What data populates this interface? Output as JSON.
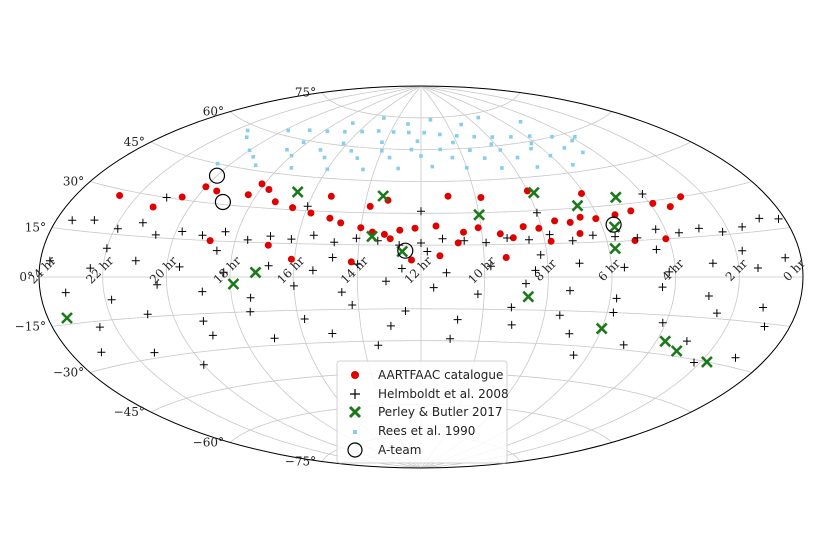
{
  "chart_data": {
    "type": "scatter",
    "projection": "aitoff",
    "grid": true,
    "legend_position": "bottom-center",
    "x_tick_labels": [
      "24 hr",
      "22 hr",
      "20 hr",
      "18 hr",
      "16 hr",
      "14 hr",
      "12 hr",
      "10 hr",
      "8 hr",
      "6 hr",
      "4 hr",
      "2 hr",
      "0 hr"
    ],
    "x_tick_values_hr": [
      24,
      22,
      20,
      18,
      16,
      14,
      12,
      10,
      8,
      6,
      4,
      2,
      0
    ],
    "y_tick_labels": [
      "75°",
      "60°",
      "45°",
      "30°",
      "15°",
      "0°",
      "−15°",
      "−30°",
      "−45°",
      "−60°",
      "−75°"
    ],
    "y_tick_values_deg": [
      75,
      60,
      45,
      30,
      15,
      0,
      -15,
      -30,
      -45,
      -60,
      -75
    ],
    "legend": [
      {
        "label": "AARTFAAC catalogue",
        "marker": "circle",
        "color": "#e00000"
      },
      {
        "label": "Helmboldt et al. 2008",
        "marker": "plus",
        "color": "#000000"
      },
      {
        "label": "Perley & Butler 2017",
        "marker": "x",
        "color": "#1a7a1a"
      },
      {
        "label": "Rees et al. 1990",
        "marker": "square",
        "color": "#87ceeb"
      },
      {
        "label": "A-team",
        "marker": "ring",
        "color": "#000000"
      }
    ],
    "series": [
      {
        "name": "AARTFAAC catalogue",
        "x_ra_hr": [
          18.1,
          19.5,
          20.5,
          21.2,
          22.6,
          17.2,
          16.5,
          15.8,
          15.1,
          14.7,
          14.0,
          13.6,
          13.2,
          12.7,
          12.2,
          11.5,
          10.6,
          10.1,
          9.4,
          8.6,
          8.1,
          7.5,
          7.0,
          6.6,
          6.1,
          5.4,
          4.8,
          3.9,
          3.4,
          2.8,
          4.1,
          7.8,
          9.3,
          11.4,
          12.3,
          14.2,
          16.1,
          18.3,
          20.0,
          17.7,
          15.3,
          13.0,
          10.8,
          9.0,
          6.8,
          5.1,
          13.8,
          13.2,
          11.0,
          9.8,
          8.0,
          6.1,
          16.9,
          18.8
        ],
        "y_dec_deg": [
          40,
          35,
          31,
          26,
          28,
          33,
          31,
          29,
          27,
          25,
          23,
          21,
          20,
          22,
          23,
          24,
          21,
          23,
          20,
          23,
          22,
          25,
          24,
          26,
          25,
          26,
          27,
          29,
          27,
          30,
          15,
          16,
          9,
          10,
          8,
          7,
          8,
          35,
          36,
          38,
          37,
          18,
          16,
          18,
          19,
          15,
          33,
          36,
          38,
          37,
          39,
          36,
          14,
          15
        ]
      },
      {
        "name": "Helmboldt et al. 2008",
        "x_ra_hr": [
          23.5,
          22.8,
          21.9,
          21.2,
          20.6,
          19.8,
          19.1,
          18.4,
          17.6,
          16.9,
          16.2,
          15.5,
          14.8,
          14.1,
          13.4,
          12.7,
          12.0,
          11.3,
          10.6,
          9.9,
          9.2,
          8.5,
          7.8,
          7.1,
          6.4,
          5.7,
          5.0,
          4.3,
          3.6,
          2.9,
          2.2,
          1.5,
          0.8,
          0.2,
          23.7,
          22.4,
          21.0,
          19.6,
          18.2,
          16.8,
          15.4,
          14.0,
          12.6,
          11.2,
          9.8,
          8.4,
          7.0,
          5.6,
          4.2,
          2.8,
          1.4,
          0.5,
          23.2,
          21.8,
          20.3,
          18.9,
          17.4,
          16.0,
          14.5,
          13.1,
          11.6,
          10.2,
          8.7,
          7.3,
          5.8,
          4.4,
          2.9,
          1.1,
          22.5,
          20.8,
          19.1,
          17.5,
          15.8,
          14.2,
          12.5,
          10.8,
          9.1,
          7.5,
          5.8,
          4.1,
          2.5,
          0.8,
          23.0,
          21.3,
          19.0,
          17.0,
          15.0,
          13.0,
          11.0,
          9.0,
          7.0,
          5.0,
          3.0,
          1.0,
          22.0,
          18.5,
          14.8,
          11.8,
          8.2,
          4.5,
          1.8,
          21.0,
          16.0,
          12.0,
          8.0,
          4.0,
          20.0,
          13.5,
          6.5,
          2.2
        ],
        "y_dec_deg": [
          18,
          19,
          17,
          20,
          16,
          18,
          17,
          19,
          16,
          18,
          17,
          19,
          16,
          18,
          17,
          15,
          16,
          18,
          17,
          16,
          18,
          17,
          19,
          16,
          18,
          17,
          16,
          19,
          17,
          18,
          16,
          17,
          19,
          18,
          5,
          3,
          6,
          4,
          2,
          5,
          3,
          6,
          4,
          2,
          5,
          3,
          6,
          4,
          2,
          5,
          3,
          6,
          -5,
          -8,
          -3,
          -6,
          -9,
          -4,
          -7,
          -2,
          -5,
          -8,
          -3,
          -6,
          -9,
          -4,
          -7,
          -10,
          -17,
          -14,
          -18,
          -15,
          -19,
          -13,
          -16,
          -20,
          -14,
          -17,
          -15,
          -18,
          -13,
          -16,
          -25,
          -28,
          -24,
          -27,
          -26,
          -23,
          -29,
          -22,
          -25,
          -28,
          -24,
          -27,
          10,
          11,
          9,
          12,
          10,
          11,
          9,
          30,
          32,
          31,
          29,
          33,
          -35,
          -32,
          -34,
          -31
        ]
      },
      {
        "name": "Perley & Butler 2017",
        "x_ra_hr": [
          23.4,
          17.9,
          17.2,
          16.6,
          13.4,
          12.6,
          10.0,
          8.6,
          6.0,
          5.8,
          3.7,
          3.1,
          1.8,
          13.6,
          5.6,
          7.8,
          6.5,
          5.0
        ],
        "y_dec_deg": [
          -13,
          -3,
          2,
          38,
          38,
          12,
          29,
          -9,
          -22,
          12,
          -25,
          -28,
          -30,
          19,
          21,
          38,
          31,
          33
        ]
      },
      {
        "name": "Rees et al. 1990",
        "x_ra_hr": [
          20.0,
          18.5,
          17.0,
          15.5,
          14.0,
          12.5,
          11.0,
          9.5,
          8.0,
          6.5,
          5.0,
          19.5,
          18.0,
          16.5,
          15.0,
          13.5,
          12.0,
          10.5,
          9.0,
          7.5,
          6.0,
          4.5,
          19.0,
          17.5,
          16.0,
          14.5,
          13.0,
          11.5,
          10.0,
          8.5,
          7.0,
          5.5,
          21.0,
          19.8,
          18.8,
          17.8,
          16.8,
          15.8,
          14.8,
          13.8,
          12.8,
          11.8,
          10.8,
          9.8,
          8.8,
          7.8,
          6.8,
          5.8,
          4.8,
          3.8,
          20.5,
          18.2,
          16.2,
          14.2,
          12.2,
          10.2,
          8.2,
          6.2,
          4.2,
          21.5,
          17.0,
          13.0,
          9.0,
          5.0,
          15.2,
          11.2,
          7.2
        ],
        "y_dec_deg": [
          52,
          55,
          57,
          58,
          59,
          60,
          60,
          59,
          58,
          57,
          55,
          50,
          53,
          54,
          55,
          56,
          57,
          56,
          55,
          54,
          53,
          52,
          47,
          48,
          49,
          50,
          51,
          52,
          51,
          50,
          49,
          48,
          56,
          62,
          64,
          65,
          66,
          67,
          68,
          68,
          68,
          68,
          67,
          66,
          65,
          64,
          63,
          62,
          60,
          58,
          45,
          59,
          61,
          63,
          64,
          63,
          61,
          59,
          57,
          58,
          70,
          72,
          71,
          68,
          74,
          74,
          73
        ]
      },
      {
        "name": "A-team",
        "x_ra_hr": [
          20.0,
          19.0,
          12.5,
          5.6
        ],
        "y_dec_deg": [
          40.7,
          31,
          12.4,
          22
        ]
      }
    ]
  }
}
